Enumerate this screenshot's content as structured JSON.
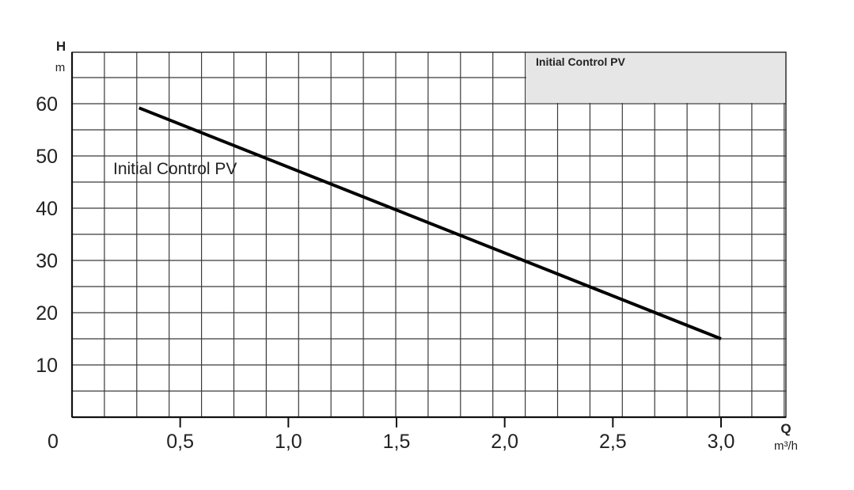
{
  "chart_data": {
    "type": "line",
    "title": "",
    "x_axis": {
      "symbol": "Q",
      "unit": "m³/h",
      "range": [
        0,
        3.1
      ],
      "ticks": [
        {
          "value": 0,
          "label": "0"
        },
        {
          "value": 0.5,
          "label": "0,5"
        },
        {
          "value": 1.0,
          "label": "1,0"
        },
        {
          "value": 1.5,
          "label": "1,5"
        },
        {
          "value": 2.0,
          "label": "2,0"
        },
        {
          "value": 2.5,
          "label": "2,5"
        },
        {
          "value": 3.0,
          "label": "3,0"
        }
      ]
    },
    "y_axis": {
      "symbol": "H",
      "unit": "m",
      "range": [
        0,
        70
      ],
      "ticks": [
        {
          "value": 10,
          "label": "10"
        },
        {
          "value": 20,
          "label": "20"
        },
        {
          "value": 30,
          "label": "30"
        },
        {
          "value": 40,
          "label": "40"
        },
        {
          "value": 50,
          "label": "50"
        },
        {
          "value": 60,
          "label": "60"
        }
      ]
    },
    "grid": true,
    "legend": {
      "position": "top-right",
      "entries": [
        "Initial Control PV"
      ],
      "background": "#e6e6e6"
    },
    "series": [
      {
        "name": "Initial Control PV",
        "color": "#000000",
        "label_at": {
          "x": 0.2,
          "y": 48
        },
        "points": [
          {
            "x": 0.31,
            "y": 59.2
          },
          {
            "x": 3.0,
            "y": 15.0
          }
        ]
      }
    ]
  }
}
